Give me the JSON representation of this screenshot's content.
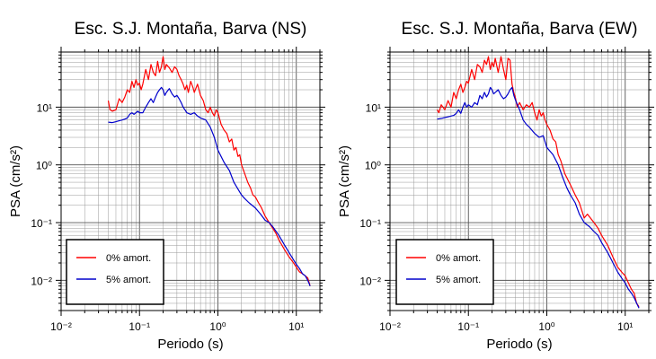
{
  "chart_data": [
    {
      "type": "line",
      "title": "Esc. S.J. Montaña, Barva (NS)",
      "xlabel": "Periodo (s)",
      "ylabel": "PSA (cm/s²)",
      "x_scale": "log",
      "y_scale": "log",
      "xlim": [
        0.01,
        20
      ],
      "ylim": [
        0.003,
        90
      ],
      "grid": true,
      "legend_position": "bottom-left",
      "x_tick_labels": [
        "10⁻²",
        "10⁻¹",
        "10⁰",
        "10¹"
      ],
      "y_tick_labels": [
        "10⁻²",
        "10⁻¹",
        "10⁰",
        "10¹"
      ],
      "series": [
        {
          "name": "0% amort.",
          "color": "#ff0000",
          "x": [
            0.04,
            0.042,
            0.045,
            0.05,
            0.055,
            0.06,
            0.065,
            0.07,
            0.075,
            0.08,
            0.085,
            0.09,
            0.095,
            0.1,
            0.105,
            0.11,
            0.12,
            0.13,
            0.14,
            0.15,
            0.16,
            0.17,
            0.18,
            0.19,
            0.2,
            0.21,
            0.22,
            0.24,
            0.26,
            0.28,
            0.3,
            0.32,
            0.34,
            0.36,
            0.38,
            0.4,
            0.42,
            0.45,
            0.48,
            0.5,
            0.55,
            0.6,
            0.65,
            0.7,
            0.75,
            0.8,
            0.85,
            0.9,
            0.95,
            1.0,
            1.1,
            1.2,
            1.3,
            1.4,
            1.5,
            1.6,
            1.7,
            1.8,
            1.9,
            2.0,
            2.2,
            2.4,
            2.6,
            2.8,
            3.0,
            3.3,
            3.6,
            4.0,
            4.5,
            5.0,
            5.5,
            6.0,
            7.0,
            8.0,
            9.0,
            10,
            11,
            12,
            13,
            14,
            15
          ],
          "y": [
            13,
            9,
            8.5,
            9,
            14,
            12,
            15,
            20,
            18,
            28,
            22,
            30,
            24,
            26,
            20,
            25,
            45,
            30,
            55,
            40,
            35,
            62,
            40,
            50,
            75,
            45,
            55,
            48,
            40,
            50,
            45,
            35,
            30,
            25,
            20,
            24,
            18,
            28,
            22,
            18,
            25,
            16,
            13,
            9,
            8,
            10,
            8,
            7,
            9,
            8,
            5,
            4,
            3.5,
            2.5,
            2.8,
            1.8,
            2,
            1.4,
            1.5,
            1,
            0.7,
            0.5,
            0.4,
            0.3,
            0.28,
            0.22,
            0.18,
            0.13,
            0.1,
            0.08,
            0.065,
            0.05,
            0.035,
            0.026,
            0.021,
            0.017,
            0.014,
            0.013,
            0.012,
            0.011,
            0.008
          ]
        },
        {
          "name": "5% amort.",
          "color": "#0000cc",
          "x": [
            0.04,
            0.045,
            0.05,
            0.055,
            0.06,
            0.065,
            0.07,
            0.075,
            0.08,
            0.085,
            0.09,
            0.095,
            0.1,
            0.11,
            0.12,
            0.13,
            0.14,
            0.15,
            0.16,
            0.17,
            0.18,
            0.19,
            0.2,
            0.21,
            0.22,
            0.24,
            0.26,
            0.28,
            0.3,
            0.32,
            0.34,
            0.36,
            0.38,
            0.4,
            0.45,
            0.5,
            0.55,
            0.6,
            0.7,
            0.8,
            0.9,
            1.0,
            1.2,
            1.4,
            1.6,
            1.8,
            2.0,
            2.2,
            2.5,
            3.0,
            3.5,
            4.0,
            4.5,
            5.0,
            6.0,
            7.0,
            8.0,
            9.0,
            10,
            11,
            12,
            13,
            14,
            15
          ],
          "y": [
            5.5,
            5.4,
            5.6,
            5.8,
            6,
            6.2,
            6.5,
            7.5,
            8,
            7.5,
            8,
            8.5,
            8,
            8,
            10,
            12,
            14,
            12,
            15,
            18,
            20,
            22,
            20,
            16,
            18,
            21,
            17,
            15,
            16,
            14,
            12,
            10,
            9,
            8,
            7.5,
            8,
            7,
            6.5,
            6,
            4.5,
            3,
            1.8,
            1.1,
            0.8,
            0.5,
            0.38,
            0.3,
            0.26,
            0.22,
            0.18,
            0.14,
            0.11,
            0.1,
            0.085,
            0.06,
            0.042,
            0.031,
            0.024,
            0.019,
            0.016,
            0.013,
            0.012,
            0.01,
            0.008
          ]
        }
      ]
    },
    {
      "type": "line",
      "title": "Esc. S.J. Montaña, Barva (EW)",
      "xlabel": "Periodo (s)",
      "ylabel": "PSA (cm/s²)",
      "x_scale": "log",
      "y_scale": "log",
      "xlim": [
        0.01,
        20
      ],
      "ylim": [
        0.003,
        90
      ],
      "grid": true,
      "legend_position": "bottom-left",
      "x_tick_labels": [
        "10⁻²",
        "10⁻¹",
        "10⁰",
        "10¹"
      ],
      "y_tick_labels": [
        "10⁻²",
        "10⁻¹",
        "10⁰",
        "10¹"
      ],
      "series": [
        {
          "name": "0% amort.",
          "color": "#ff0000",
          "x": [
            0.04,
            0.042,
            0.045,
            0.05,
            0.055,
            0.06,
            0.065,
            0.07,
            0.075,
            0.08,
            0.085,
            0.09,
            0.095,
            0.1,
            0.11,
            0.12,
            0.13,
            0.14,
            0.15,
            0.16,
            0.17,
            0.18,
            0.19,
            0.2,
            0.21,
            0.22,
            0.24,
            0.26,
            0.28,
            0.3,
            0.32,
            0.34,
            0.36,
            0.38,
            0.4,
            0.42,
            0.45,
            0.5,
            0.55,
            0.6,
            0.65,
            0.7,
            0.75,
            0.8,
            0.85,
            0.9,
            0.95,
            1.0,
            1.1,
            1.2,
            1.3,
            1.4,
            1.5,
            1.7,
            2.0,
            2.3,
            2.6,
            3.0,
            3.3,
            3.6,
            4.0,
            4.5,
            5.0,
            6.0,
            7.0,
            8.0,
            9.0,
            10,
            11,
            12,
            13,
            14,
            15
          ],
          "y": [
            9,
            8,
            11,
            9,
            13,
            10,
            18,
            14,
            20,
            25,
            18,
            22,
            28,
            26,
            45,
            30,
            55,
            50,
            40,
            65,
            55,
            75,
            45,
            60,
            50,
            70,
            40,
            75,
            45,
            30,
            70,
            65,
            25,
            18,
            14,
            10,
            12,
            9,
            11,
            10,
            12,
            8,
            6,
            9,
            7,
            8,
            6,
            5,
            4,
            2.8,
            2.5,
            1.5,
            1.2,
            0.7,
            0.45,
            0.3,
            0.22,
            0.12,
            0.14,
            0.12,
            0.1,
            0.08,
            0.06,
            0.04,
            0.025,
            0.017,
            0.014,
            0.012,
            0.009,
            0.007,
            0.006,
            0.004,
            0.0035
          ]
        },
        {
          "name": "5% amort.",
          "color": "#0000cc",
          "x": [
            0.04,
            0.045,
            0.05,
            0.055,
            0.06,
            0.065,
            0.07,
            0.075,
            0.08,
            0.085,
            0.09,
            0.095,
            0.1,
            0.11,
            0.12,
            0.13,
            0.14,
            0.15,
            0.16,
            0.17,
            0.18,
            0.19,
            0.2,
            0.21,
            0.22,
            0.24,
            0.26,
            0.28,
            0.3,
            0.32,
            0.34,
            0.36,
            0.38,
            0.4,
            0.45,
            0.5,
            0.55,
            0.6,
            0.7,
            0.8,
            0.9,
            1.0,
            1.2,
            1.4,
            1.6,
            1.8,
            2.0,
            2.3,
            2.6,
            3.0,
            3.5,
            4.0,
            4.5,
            5.0,
            6.0,
            7.0,
            8.0,
            9.0,
            10,
            11,
            12,
            13,
            14,
            15
          ],
          "y": [
            6.2,
            6.4,
            6.6,
            6.8,
            7,
            7.2,
            7.8,
            9,
            7.8,
            10,
            12,
            10,
            11,
            10,
            12,
            11,
            16,
            14,
            18,
            15,
            17,
            22,
            20,
            17,
            18,
            20,
            16,
            14,
            15,
            17,
            20,
            22,
            16,
            13,
            9,
            6,
            5,
            4.5,
            3.5,
            3,
            3.2,
            2,
            1.5,
            1,
            0.6,
            0.4,
            0.3,
            0.22,
            0.14,
            0.1,
            0.085,
            0.07,
            0.06,
            0.045,
            0.03,
            0.02,
            0.014,
            0.011,
            0.009,
            0.007,
            0.006,
            0.005,
            0.004,
            0.0033
          ]
        }
      ]
    }
  ]
}
